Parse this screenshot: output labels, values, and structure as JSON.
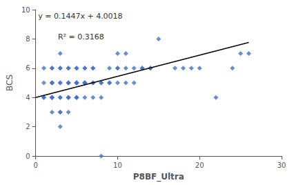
{
  "chart_data": {
    "type": "scatter",
    "xlabel": "P8BF_Ultra",
    "ylabel": "BCS",
    "xlim": [
      0,
      30
    ],
    "ylim": [
      0,
      10
    ],
    "xticks": [
      0,
      10,
      20,
      30
    ],
    "yticks": [
      0,
      2,
      4,
      6,
      8,
      10
    ],
    "grid": false,
    "annotations": [
      "y = 0.1447x + 4.0018",
      "R² = 0.3168"
    ],
    "series": [
      {
        "type": "scatter",
        "color": "#4472C4",
        "marker": "diamond",
        "x": [
          1,
          1,
          1,
          1,
          2,
          2,
          2,
          2,
          2,
          2,
          2,
          2,
          2,
          2,
          3,
          3,
          3,
          3,
          3,
          3,
          3,
          3,
          3,
          3,
          4,
          4,
          4,
          4,
          4,
          4,
          4,
          4,
          4,
          5,
          5,
          5,
          5,
          5,
          5,
          5,
          5,
          5,
          5,
          6,
          6,
          6,
          6,
          6,
          6,
          6,
          6,
          7,
          7,
          7,
          7,
          7,
          8,
          8,
          8,
          8,
          9,
          9,
          9,
          10,
          10,
          10,
          10,
          11,
          11,
          11,
          12,
          12,
          13,
          13,
          14,
          14,
          15,
          17,
          18,
          19,
          20,
          22,
          24,
          25,
          26
        ],
        "values": [
          4,
          4,
          5,
          6,
          3,
          4,
          4,
          5,
          5,
          5,
          6,
          6,
          4,
          4,
          3,
          3,
          4,
          4,
          5,
          5,
          6,
          6,
          7,
          2,
          3,
          4,
          4,
          5,
          5,
          6,
          6,
          5,
          4,
          4,
          4,
          5,
          5,
          5,
          6,
          6,
          5,
          5,
          4,
          4,
          5,
          5,
          5,
          6,
          6,
          5,
          5,
          4,
          5,
          5,
          6,
          6,
          4,
          5,
          5,
          0,
          5,
          5,
          6,
          5,
          6,
          6,
          7,
          5,
          6,
          7,
          6,
          5,
          6,
          6,
          6,
          6,
          8,
          6,
          6,
          6,
          6,
          4,
          6,
          7,
          7
        ]
      },
      {
        "type": "line",
        "color": "black",
        "line_style": "solid",
        "x": [
          0,
          26
        ],
        "values": [
          4.0018,
          7.764
        ]
      }
    ]
  }
}
